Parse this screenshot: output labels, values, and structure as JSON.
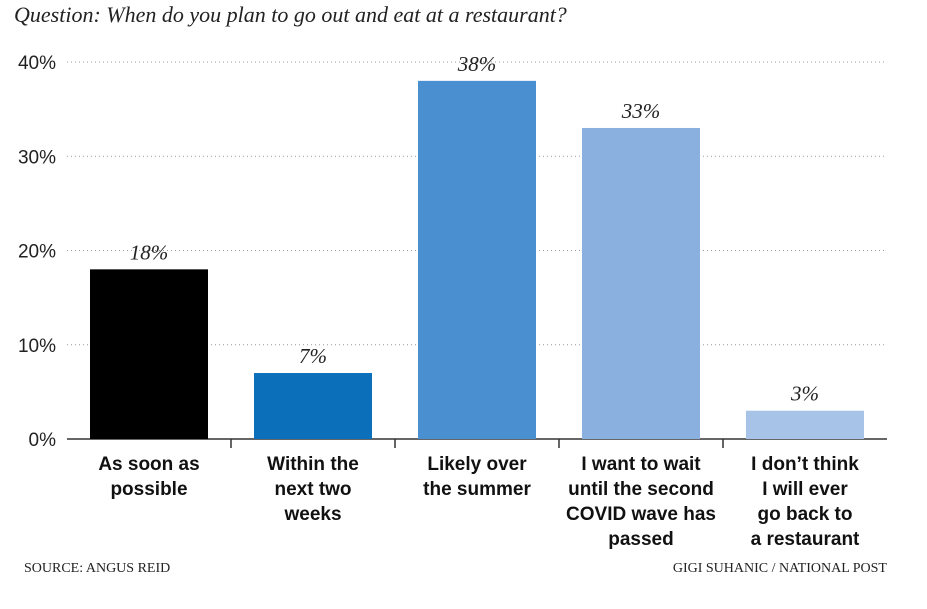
{
  "chart_data": {
    "type": "bar",
    "title": "Question: When do you plan to go out and eat at a restaurant?",
    "categories": [
      [
        "As soon as",
        "possible"
      ],
      [
        "Within the",
        "next two",
        "weeks"
      ],
      [
        "Likely over",
        "the summer"
      ],
      [
        "I want to wait",
        "until the second",
        "COVID wave has",
        "passed"
      ],
      [
        "I don’t think",
        "I will ever",
        "go back to",
        "a restaurant"
      ]
    ],
    "values": [
      18,
      7,
      38,
      33,
      3
    ],
    "value_labels": [
      "18%",
      "7%",
      "38%",
      "33%",
      "3%"
    ],
    "colors": [
      "#000000",
      "#0b6fba",
      "#4a8fd0",
      "#89b0de",
      "#a8c3e8"
    ],
    "ylim": [
      0,
      40
    ],
    "yticks": [
      {
        "value": 0,
        "label": "0%"
      },
      {
        "value": 10,
        "label": "10%"
      },
      {
        "value": 20,
        "label": "20%"
      },
      {
        "value": 30,
        "label": "30%"
      },
      {
        "value": 40,
        "label": "40%"
      }
    ],
    "grid": true,
    "source": "SOURCE: ANGUS REID",
    "credit": "GIGI SUHANIC / NATIONAL POST"
  }
}
